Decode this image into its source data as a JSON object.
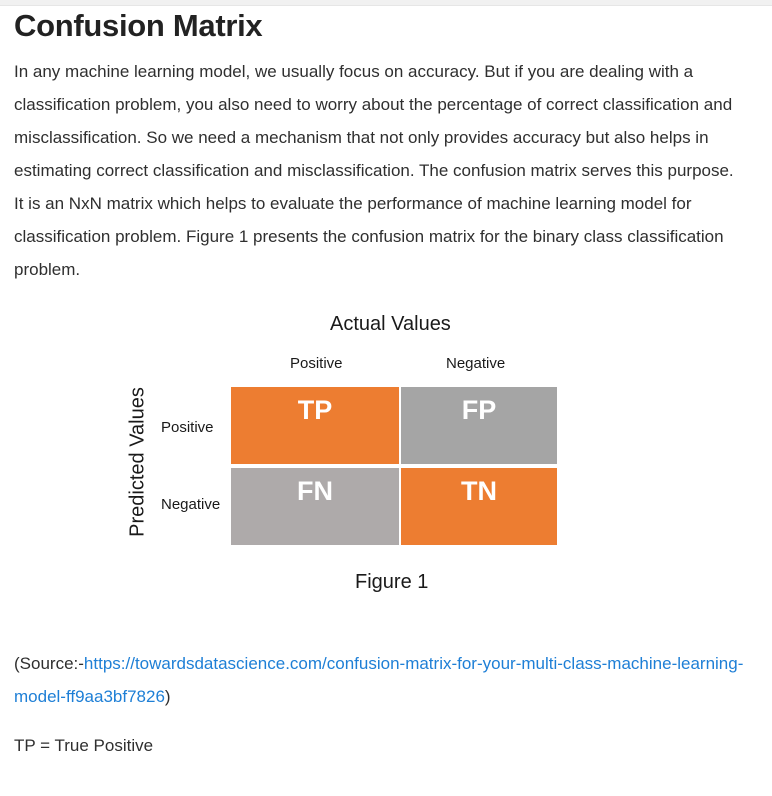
{
  "article": {
    "title": "Confusion Matrix",
    "intro": "In any machine learning model, we usually focus on accuracy. But if you are dealing with a classification problem, you also need to worry about the percentage of correct classification and misclassification. So we need a mechanism that not only provides accuracy but also helps in estimating correct classification and misclassification. The confusion matrix serves this purpose. It is an NxN matrix which helps to evaluate the performance of machine learning model for classification problem. Figure 1 presents the confusion matrix for the binary class classification problem."
  },
  "figure": {
    "actual_title": "Actual Values",
    "predicted_title": "Predicted Values",
    "columns": [
      "Positive",
      "Negative"
    ],
    "rows": [
      "Positive",
      "Negative"
    ],
    "cells": {
      "tp": "TP",
      "fp": "FP",
      "fn": "FN",
      "tn": "TN"
    },
    "colors": {
      "orange": "#ed7d31",
      "gray": "#a5a5a5",
      "light_gray": "#aeaaaa"
    },
    "caption": "Figure 1"
  },
  "source": {
    "prefix": "(Source:-",
    "link_text": "https://towardsdatascience.com/confusion-matrix-for-your-multi-class-machine-learning-model-ff9aa3bf7826",
    "suffix": ")"
  },
  "definitions": {
    "tp": "TP = True Positive"
  }
}
